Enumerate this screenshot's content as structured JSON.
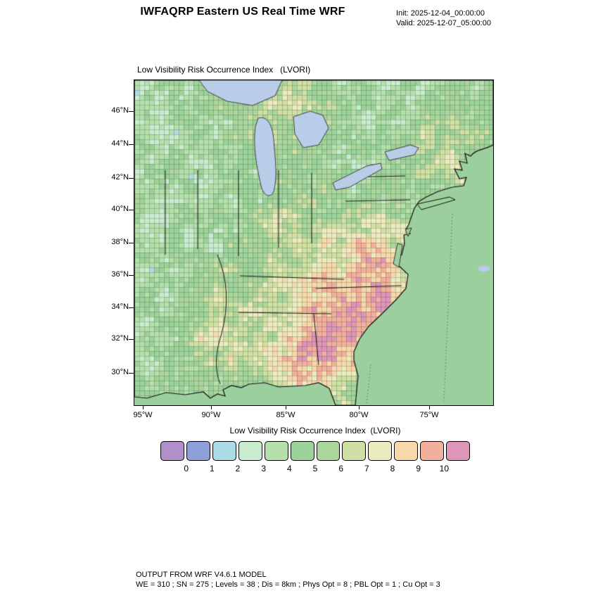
{
  "header": {
    "title": "IWFAQRP Eastern US Real Time WRF",
    "init_label": "Init: 2025-12-04_00:00:00",
    "valid_label": "Valid: 2025-12-07_05:00:00"
  },
  "map": {
    "title": "Low Visibility Risk Occurrence Index   (LVORI)",
    "lat_ticks": [
      "46°N",
      "44°N",
      "42°N",
      "40°N",
      "38°N",
      "36°N",
      "34°N",
      "32°N",
      "30°N"
    ],
    "lon_ticks": [
      "95°W",
      "90°W",
      "85°W",
      "80°W",
      "75°W"
    ],
    "ocean_color": "#9ccf9e",
    "lake_color": "#b9cce8",
    "coast_color": "#111111"
  },
  "legend": {
    "title": "Low Visibility Risk Occurrence Index  (LVORI)",
    "tick_labels": [
      "0",
      "1",
      "2",
      "3",
      "4",
      "5",
      "6",
      "7",
      "8",
      "9",
      "10"
    ],
    "colors": [
      "#b18fcb",
      "#8f9fd9",
      "#abdce6",
      "#c9eccf",
      "#b5e0ac",
      "#9cd39a",
      "#abd69c",
      "#cfe0a4",
      "#eceabf",
      "#f6d8ab",
      "#f2af9b",
      "#dd96b8"
    ]
  },
  "footer": {
    "line1": "OUTPUT FROM WRF V4.6.1 MODEL",
    "line2": "WE = 310 ; SN = 275 ; Levels = 38 ; Dis = 8km ; Phys Opt = 8 ; PBL Opt = 1 ; Cu Opt = 3"
  },
  "chart_data": {
    "type": "heatmap",
    "title": "Low Visibility Risk Occurrence Index  (LVORI)",
    "region": "Eastern US",
    "value_range": [
      0,
      10
    ],
    "legend_values": [
      0,
      1,
      2,
      3,
      4,
      5,
      6,
      7,
      8,
      9,
      10
    ],
    "lat_ticks": [
      "46°N",
      "44°N",
      "42°N",
      "40°N",
      "38°N",
      "36°N",
      "34°N",
      "32°N",
      "30°N"
    ],
    "lon_ticks": [
      "95°W",
      "90°W",
      "85°W",
      "80°W",
      "75°W"
    ],
    "legend_position": "bottom"
  }
}
